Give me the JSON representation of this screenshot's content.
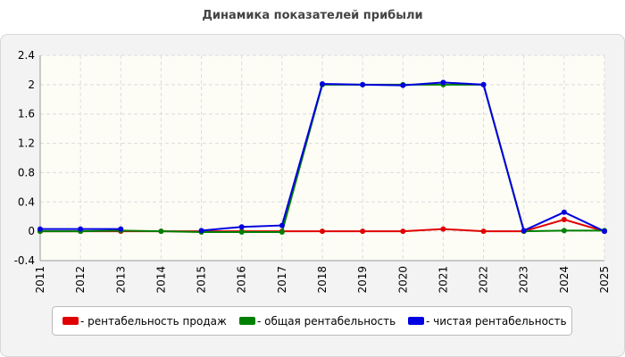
{
  "chart_data": {
    "type": "line",
    "title": "Динамика показателей прибыли",
    "categories": [
      "2011",
      "2012",
      "2013",
      "2014",
      "2015",
      "2016",
      "2017",
      "2018",
      "2019",
      "2020",
      "2021",
      "2022",
      "2023",
      "2024",
      "2025"
    ],
    "series": [
      {
        "name": "- рентабельность продаж",
        "color": "#e00000",
        "values": [
          0,
          0,
          0,
          0,
          0,
          0,
          0,
          0,
          0,
          0,
          0.03,
          0,
          0,
          0.16,
          0
        ]
      },
      {
        "name": "- общая рентабельность",
        "color": "#008000",
        "values": [
          0,
          0,
          0.01,
          0,
          -0.01,
          -0.01,
          -0.01,
          2.0,
          2.0,
          2.0,
          2.0,
          2.0,
          0,
          0.01,
          0.01
        ]
      },
      {
        "name": "- чистая рентабельность",
        "color": "#0000e0",
        "values": [
          0.03,
          0.03,
          0.03,
          null,
          0.01,
          0.06,
          0.08,
          2.01,
          2.0,
          1.99,
          2.03,
          2.0,
          0.01,
          0.26,
          0
        ]
      }
    ],
    "ylim": [
      -0.4,
      2.4
    ],
    "yticks": [
      -0.4,
      0,
      0.4,
      0.8,
      1.2,
      1.6,
      2,
      2.4
    ],
    "grid": true
  }
}
